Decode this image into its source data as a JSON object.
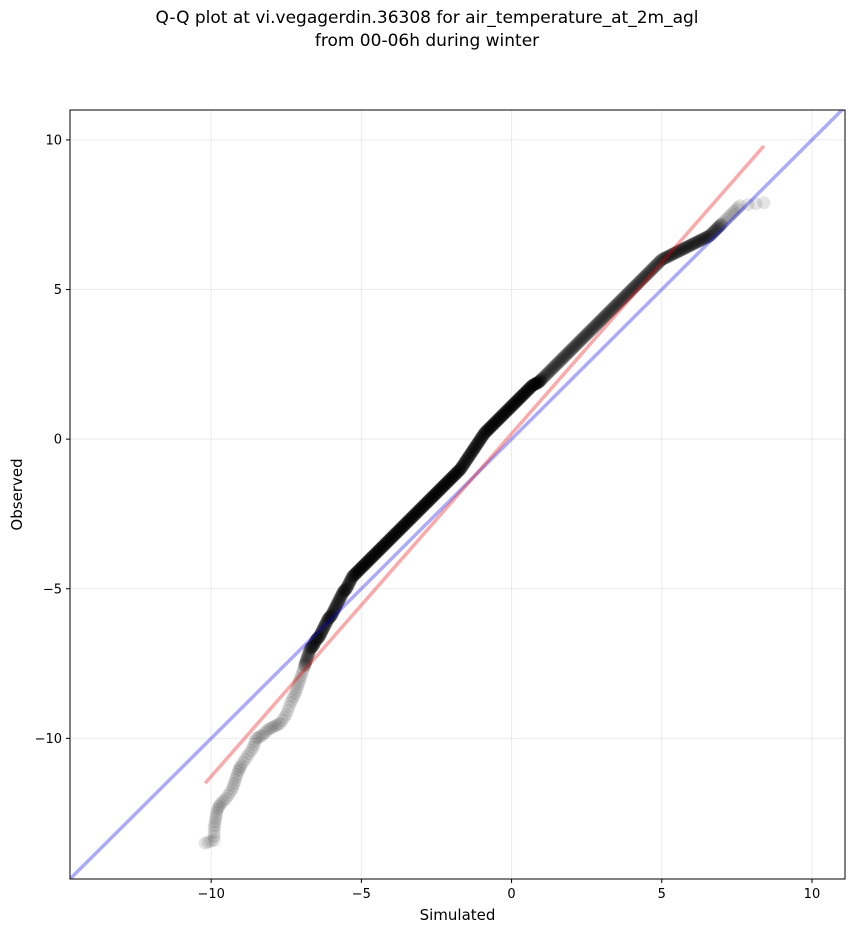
{
  "chart_data": {
    "type": "scatter",
    "title": "Q-Q plot at vi.vegagerdin.36308 for air_temperature_at_2m_agl",
    "subtitle": "from 00-06h during winter",
    "xlabel": "Simulated",
    "ylabel": "Observed",
    "xlim": [
      -14.7,
      11.1
    ],
    "ylim": [
      -14.7,
      11.0
    ],
    "x_ticks": [
      -10,
      -5,
      0,
      5,
      10
    ],
    "y_ticks": [
      -10,
      -5,
      0,
      5,
      10
    ],
    "x_tick_labels": [
      "−10",
      "−5",
      "0",
      "5",
      "10"
    ],
    "y_tick_labels": [
      "−10",
      "−5",
      "0",
      "5",
      "10"
    ],
    "grid": true,
    "reference_line": {
      "x": [
        -14.7,
        11.1
      ],
      "y": [
        -14.7,
        11.1
      ],
      "color": "#a6a6f0"
    },
    "fit_line": {
      "x": [
        -10.2,
        8.4
      ],
      "y": [
        -11.5,
        9.8
      ],
      "color": "#f5a6a6"
    },
    "points": {
      "color": "#000000",
      "x": [
        -10.2,
        -9.9,
        -9.9,
        -9.85,
        -9.8,
        -9.7,
        -9.5,
        -9.3,
        -9.2,
        -9.1,
        -9.0,
        -8.8,
        -8.6,
        -8.5,
        -8.3,
        -8.1,
        -7.9,
        -7.7,
        -7.5,
        -7.35,
        -7.2,
        -7.1,
        -7.0,
        -6.9,
        -6.8,
        -6.7,
        -6.6,
        -6.5,
        -6.4,
        -6.3,
        -6.2,
        -6.1,
        -6.0,
        -5.9,
        -5.8,
        -5.7,
        -5.6,
        -5.5,
        -5.4,
        -5.3,
        -5.2,
        -5.1,
        -5.0,
        -4.9,
        -4.8,
        -4.7,
        -4.6,
        -4.5,
        -4.4,
        -4.3,
        -4.2,
        -4.1,
        -4.0,
        -3.9,
        -3.8,
        -3.7,
        -3.6,
        -3.5,
        -3.4,
        -3.3,
        -3.2,
        -3.1,
        -3.0,
        -2.9,
        -2.8,
        -2.7,
        -2.6,
        -2.5,
        -2.4,
        -2.3,
        -2.2,
        -2.1,
        -2.0,
        -1.9,
        -1.8,
        -1.7,
        -1.6,
        -1.5,
        -1.4,
        -1.3,
        -1.2,
        -1.1,
        -1.0,
        -0.9,
        -0.8,
        -0.7,
        -0.6,
        -0.5,
        -0.4,
        -0.3,
        -0.2,
        -0.1,
        0.0,
        0.1,
        0.2,
        0.3,
        0.4,
        0.5,
        0.6,
        0.7,
        0.8,
        0.9,
        1.0,
        1.2,
        1.4,
        1.6,
        1.8,
        2.0,
        2.2,
        2.4,
        2.6,
        2.8,
        3.0,
        3.2,
        3.4,
        3.6,
        3.8,
        4.0,
        4.2,
        4.4,
        4.6,
        4.8,
        5.0,
        5.2,
        5.4,
        5.6,
        5.8,
        6.0,
        6.2,
        6.4,
        6.6,
        6.8,
        7.0,
        7.2,
        7.4,
        7.6,
        8.4
      ],
      "y": [
        -13.5,
        -13.4,
        -13.0,
        -12.7,
        -12.4,
        -12.2,
        -12.0,
        -11.7,
        -11.4,
        -11.1,
        -10.9,
        -10.6,
        -10.3,
        -10.0,
        -9.9,
        -9.7,
        -9.6,
        -9.5,
        -9.2,
        -8.8,
        -8.5,
        -8.2,
        -7.9,
        -7.6,
        -7.3,
        -7.0,
        -6.9,
        -6.7,
        -6.6,
        -6.4,
        -6.2,
        -6.0,
        -5.9,
        -5.7,
        -5.5,
        -5.3,
        -5.1,
        -5.0,
        -4.8,
        -4.6,
        -4.5,
        -4.4,
        -4.3,
        -4.2,
        -4.1,
        -4.0,
        -3.9,
        -3.8,
        -3.7,
        -3.6,
        -3.5,
        -3.4,
        -3.3,
        -3.2,
        -3.1,
        -3.0,
        -2.9,
        -2.8,
        -2.7,
        -2.6,
        -2.5,
        -2.4,
        -2.3,
        -2.2,
        -2.1,
        -2.0,
        -1.9,
        -1.8,
        -1.7,
        -1.6,
        -1.5,
        -1.4,
        -1.3,
        -1.2,
        -1.1,
        -1.0,
        -0.85,
        -0.7,
        -0.55,
        -0.4,
        -0.25,
        -0.1,
        0.05,
        0.2,
        0.3,
        0.4,
        0.5,
        0.6,
        0.7,
        0.8,
        0.9,
        1.0,
        1.1,
        1.2,
        1.3,
        1.4,
        1.5,
        1.6,
        1.7,
        1.8,
        1.85,
        1.9,
        2.0,
        2.2,
        2.4,
        2.6,
        2.8,
        3.0,
        3.2,
        3.4,
        3.6,
        3.8,
        4.0,
        4.2,
        4.4,
        4.6,
        4.8,
        5.0,
        5.2,
        5.4,
        5.6,
        5.8,
        6.0,
        6.1,
        6.2,
        6.3,
        6.4,
        6.5,
        6.6,
        6.7,
        6.8,
        7.0,
        7.2,
        7.4,
        7.6,
        7.8,
        7.9
      ]
    }
  }
}
